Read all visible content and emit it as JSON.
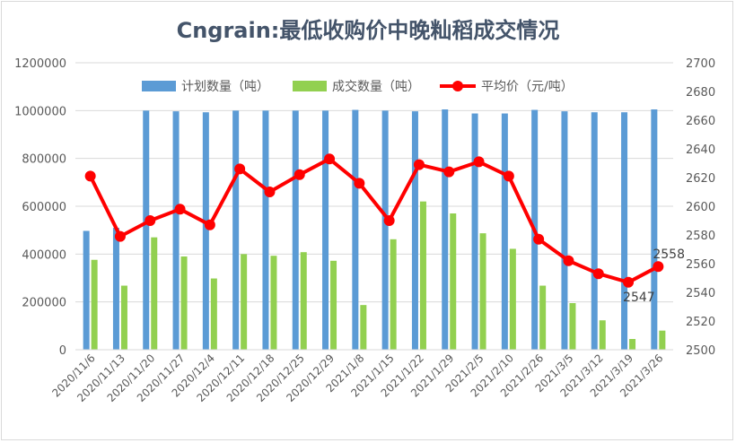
{
  "chart_data": {
    "type": "bar",
    "title": "Cngrain:最低收购价中晚籼稻成交情况",
    "categories": [
      "2020/11/6",
      "2020/11/13",
      "2020/11/20",
      "2020/11/27",
      "2020/12/4",
      "2020/12/11",
      "2020/12/18",
      "2020/12/25",
      "2020/12/29",
      "2021/1/8",
      "2021/1/15",
      "2021/1/22",
      "2021/1/29",
      "2021/2/5",
      "2021/2/10",
      "2021/2/26",
      "2021/3/5",
      "2021/3/12",
      "2021/3/19",
      "2021/3/26"
    ],
    "series": [
      {
        "name": "计划数量（吨）",
        "kind": "bar",
        "axis": "left",
        "color": "#5b9bd5",
        "values": [
          497000,
          510000,
          1000000,
          997000,
          993000,
          1000000,
          1000000,
          1000000,
          1000000,
          1003000,
          1000000,
          997000,
          1005000,
          988000,
          988000,
          1003000,
          997000,
          993000,
          993000,
          1005000
        ]
      },
      {
        "name": "成交数量（吨）",
        "kind": "bar",
        "axis": "left",
        "color": "#92d050",
        "values": [
          376000,
          268000,
          470000,
          390000,
          298000,
          400000,
          393000,
          408000,
          372000,
          187000,
          462000,
          620000,
          570000,
          487000,
          422000,
          268000,
          195000,
          123000,
          45000,
          80000
        ]
      },
      {
        "name": "平均价（元/吨）",
        "kind": "line",
        "axis": "right",
        "color": "#ff0000",
        "values": [
          2621,
          2579,
          2590,
          2598,
          2587,
          2626,
          2610,
          2622,
          2633,
          2616,
          2590,
          2629,
          2624,
          2631,
          2621,
          2577,
          2562,
          2553,
          2547,
          2558
        ]
      }
    ],
    "ylim_left": [
      0,
      1200000
    ],
    "ylim_right": [
      2500,
      2700
    ],
    "yticks_left": [
      "0",
      "200000",
      "400000",
      "600000",
      "800000",
      "1000000",
      "1200000"
    ],
    "yticks_right": [
      "2500",
      "2520",
      "2540",
      "2560",
      "2580",
      "2600",
      "2620",
      "2640",
      "2660",
      "2680",
      "2700"
    ],
    "data_labels": [
      {
        "index": 18,
        "text": "2547"
      },
      {
        "index": 19,
        "text": "2558"
      }
    ],
    "legend_position": "top",
    "grid": "horizontal"
  }
}
